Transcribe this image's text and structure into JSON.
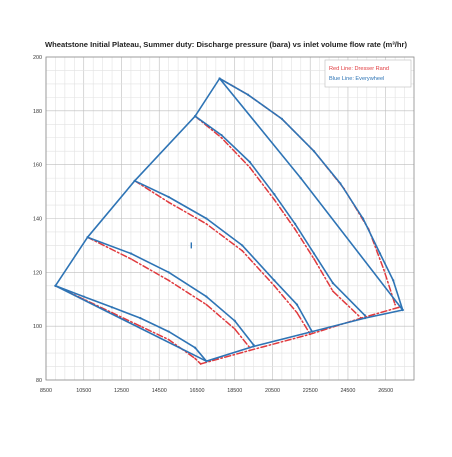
{
  "chart_data": {
    "type": "line",
    "title": "Wheatstone Initial Plateau, Summer duty: Discharge pressure (bara) vs inlet volume flow rate (m³/hr)",
    "xlabel": "",
    "ylabel": "",
    "xlim": [
      8500,
      28000
    ],
    "ylim": [
      80,
      200
    ],
    "x_ticks": [
      "8500",
      "10500",
      "12500",
      "14500",
      "16500",
      "18500",
      "20500",
      "22500",
      "24500",
      "26500"
    ],
    "y_ticks": [
      "80",
      "100",
      "120",
      "140",
      "160",
      "180",
      "200"
    ],
    "grid": true,
    "legend_position": "top-right",
    "legend": [
      {
        "name": "Red Line: Dresser Rand",
        "color": "#e03a3e"
      },
      {
        "name": "Blue Line: Everywheel",
        "color": "#2e74b5"
      }
    ],
    "annotation_point": {
      "x": 16200,
      "y": 130
    },
    "series": [
      {
        "name": "Blue Line: Everywheel",
        "color": "#2e74b5",
        "style": "solid",
        "lines": [
          [
            [
              9000,
              115
            ],
            [
              10500,
              111
            ],
            [
              12000,
              107
            ],
            [
              13500,
              103
            ],
            [
              15000,
              98
            ],
            [
              16400,
              92
            ],
            [
              17000,
              87
            ]
          ],
          [
            [
              10700,
              133
            ],
            [
              13000,
              127
            ],
            [
              15000,
              120
            ],
            [
              17000,
              111
            ],
            [
              18500,
              102
            ],
            [
              19500,
              93
            ]
          ],
          [
            [
              13200,
              154
            ],
            [
              15000,
              148
            ],
            [
              17000,
              140
            ],
            [
              18900,
              130
            ],
            [
              20600,
              117
            ],
            [
              21800,
              108
            ],
            [
              22600,
              98
            ]
          ],
          [
            [
              16400,
              178
            ],
            [
              17800,
              171
            ],
            [
              19300,
              161
            ],
            [
              20600,
              149
            ],
            [
              21700,
              138
            ],
            [
              22700,
              127
            ],
            [
              23700,
              116
            ],
            [
              25400,
              104
            ]
          ],
          [
            [
              17700,
              192
            ],
            [
              19200,
              186
            ],
            [
              21000,
              177
            ],
            [
              22700,
              165
            ],
            [
              24100,
              153
            ],
            [
              25300,
              140
            ],
            [
              26200,
              127
            ],
            [
              26900,
              117
            ],
            [
              27400,
              106
            ]
          ],
          [
            [
              9000,
              115
            ],
            [
              10700,
              133
            ],
            [
              13200,
              154
            ],
            [
              16400,
              178
            ],
            [
              17700,
              192
            ],
            [
              22000,
              155
            ],
            [
              27400,
              106
            ]
          ],
          [
            [
              17000,
              87
            ],
            [
              19500,
              92.5
            ],
            [
              22600,
              98
            ],
            [
              25400,
              103
            ],
            [
              27400,
              106
            ]
          ],
          [
            [
              9000,
              115
            ],
            [
              17000,
              87
            ]
          ]
        ]
      },
      {
        "name": "Red Line: Dresser Rand",
        "color": "#e03a3e",
        "style": "dash-dot",
        "lines": [
          [
            [
              9000,
              115
            ],
            [
              10500,
              110
            ],
            [
              12000,
              105
            ],
            [
              13500,
              100
            ],
            [
              15000,
              95
            ],
            [
              16400,
              88
            ],
            [
              16700,
              86
            ]
          ],
          [
            [
              10700,
              133
            ],
            [
              13000,
              125
            ],
            [
              15000,
              117
            ],
            [
              17000,
              108
            ],
            [
              18500,
              99
            ],
            [
              19300,
              92
            ]
          ],
          [
            [
              13200,
              154
            ],
            [
              15000,
              146
            ],
            [
              17000,
              138
            ],
            [
              18900,
              128
            ],
            [
              20600,
              115
            ],
            [
              21800,
              105
            ],
            [
              22500,
              97
            ]
          ],
          [
            [
              16400,
              178
            ],
            [
              17800,
              170
            ],
            [
              19300,
              159
            ],
            [
              20600,
              147
            ],
            [
              21700,
              136
            ],
            [
              22700,
              125
            ],
            [
              23700,
              113
            ],
            [
              25200,
              103
            ]
          ],
          [
            [
              17700,
              192
            ],
            [
              19200,
              186
            ],
            [
              21000,
              177
            ],
            [
              22700,
              165
            ],
            [
              24300,
              151
            ],
            [
              25600,
              136
            ],
            [
              26400,
              121
            ],
            [
              27000,
              108
            ]
          ],
          [
            [
              16700,
              86
            ],
            [
              19300,
              91
            ],
            [
              22500,
              97
            ],
            [
              25200,
              103
            ],
            [
              27200,
              107
            ]
          ]
        ]
      }
    ]
  }
}
